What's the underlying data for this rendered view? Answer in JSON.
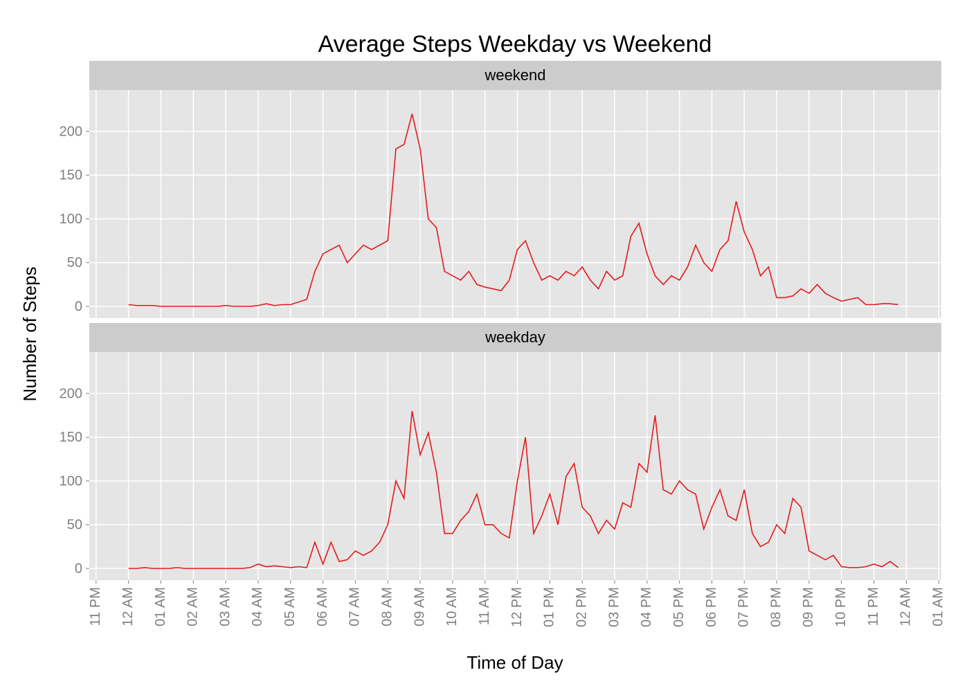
{
  "chart_data": {
    "type": "line",
    "title": "Average Steps Weekday vs Weekend",
    "x_label": "Time of Day",
    "y_label": "Number of Steps",
    "xlim": [
      -1.21,
      25.08
    ],
    "xticks": [
      {
        "value": -1,
        "label": "11 PM"
      },
      {
        "value": 0,
        "label": "12 AM"
      },
      {
        "value": 1,
        "label": "01 AM"
      },
      {
        "value": 2,
        "label": "02 AM"
      },
      {
        "value": 3,
        "label": "03 AM"
      },
      {
        "value": 4,
        "label": "04 AM"
      },
      {
        "value": 5,
        "label": "05 AM"
      },
      {
        "value": 6,
        "label": "06 AM"
      },
      {
        "value": 7,
        "label": "07 AM"
      },
      {
        "value": 8,
        "label": "08 AM"
      },
      {
        "value": 9,
        "label": "09 AM"
      },
      {
        "value": 10,
        "label": "10 AM"
      },
      {
        "value": 11,
        "label": "11 AM"
      },
      {
        "value": 12,
        "label": "12 PM"
      },
      {
        "value": 13,
        "label": "01 PM"
      },
      {
        "value": 14,
        "label": "02 PM"
      },
      {
        "value": 15,
        "label": "03 PM"
      },
      {
        "value": 16,
        "label": "04 PM"
      },
      {
        "value": 17,
        "label": "05 PM"
      },
      {
        "value": 18,
        "label": "06 PM"
      },
      {
        "value": 19,
        "label": "07 PM"
      },
      {
        "value": 20,
        "label": "08 PM"
      },
      {
        "value": 21,
        "label": "09 PM"
      },
      {
        "value": 22,
        "label": "10 PM"
      },
      {
        "value": 23,
        "label": "11 PM"
      },
      {
        "value": 24,
        "label": "12 AM"
      },
      {
        "value": 25,
        "label": "01 AM"
      }
    ],
    "ylim": [
      -13.4,
      247.4
    ],
    "yticks": [
      0,
      50,
      100,
      150,
      200
    ],
    "grid": true,
    "x": [
      0,
      0.25,
      0.5,
      0.75,
      1,
      1.25,
      1.5,
      1.75,
      2,
      2.25,
      2.5,
      2.75,
      3,
      3.25,
      3.5,
      3.75,
      4,
      4.25,
      4.5,
      4.75,
      5,
      5.25,
      5.5,
      5.75,
      6,
      6.25,
      6.5,
      6.75,
      7,
      7.25,
      7.5,
      7.75,
      8,
      8.25,
      8.5,
      8.75,
      9,
      9.25,
      9.5,
      9.75,
      10,
      10.25,
      10.5,
      10.75,
      11,
      11.25,
      11.5,
      11.75,
      12,
      12.25,
      12.5,
      12.75,
      13,
      13.25,
      13.5,
      13.75,
      14,
      14.25,
      14.5,
      14.75,
      15,
      15.25,
      15.5,
      15.75,
      16,
      16.25,
      16.5,
      16.75,
      17,
      17.25,
      17.5,
      17.75,
      18,
      18.25,
      18.5,
      18.75,
      19,
      19.25,
      19.5,
      19.75,
      20,
      20.25,
      20.5,
      20.75,
      21,
      21.25,
      21.5,
      21.75,
      22,
      22.25,
      22.5,
      22.75,
      23,
      23.25,
      23.5,
      23.75
    ],
    "series": [
      {
        "name": "weekend",
        "color": "#e41a1c",
        "values": [
          2,
          1,
          1,
          1,
          0,
          0,
          0,
          0,
          0,
          0,
          0,
          0,
          1,
          0,
          0,
          0,
          1,
          3,
          1,
          2,
          2,
          5,
          8,
          40,
          60,
          65,
          70,
          50,
          60,
          70,
          65,
          70,
          75,
          180,
          185,
          220,
          180,
          100,
          90,
          40,
          35,
          30,
          40,
          25,
          22,
          20,
          18,
          30,
          65,
          75,
          50,
          30,
          35,
          30,
          40,
          35,
          45,
          30,
          20,
          40,
          30,
          35,
          80,
          95,
          60,
          35,
          25,
          35,
          30,
          45,
          70,
          50,
          40,
          65,
          75,
          120,
          85,
          65,
          35,
          45,
          10,
          10,
          12,
          20,
          15,
          25,
          15,
          10,
          6,
          8,
          10,
          2,
          2,
          3,
          3,
          2
        ]
      },
      {
        "name": "weekday",
        "color": "#e41a1c",
        "values": [
          0,
          0,
          1,
          0,
          0,
          0,
          1,
          0,
          0,
          0,
          0,
          0,
          0,
          0,
          0,
          1,
          5,
          2,
          3,
          2,
          1,
          2,
          1,
          30,
          5,
          30,
          8,
          10,
          20,
          15,
          20,
          30,
          50,
          100,
          80,
          180,
          130,
          155,
          110,
          40,
          40,
          55,
          65,
          85,
          50,
          50,
          40,
          35,
          100,
          150,
          40,
          60,
          85,
          50,
          105,
          120,
          70,
          60,
          40,
          55,
          45,
          75,
          70,
          120,
          110,
          175,
          90,
          85,
          100,
          90,
          85,
          45,
          70,
          90,
          60,
          55,
          90,
          40,
          25,
          30,
          50,
          40,
          80,
          70,
          20,
          15,
          10,
          15,
          2,
          1,
          1,
          2,
          5,
          2,
          8,
          1
        ]
      }
    ]
  }
}
